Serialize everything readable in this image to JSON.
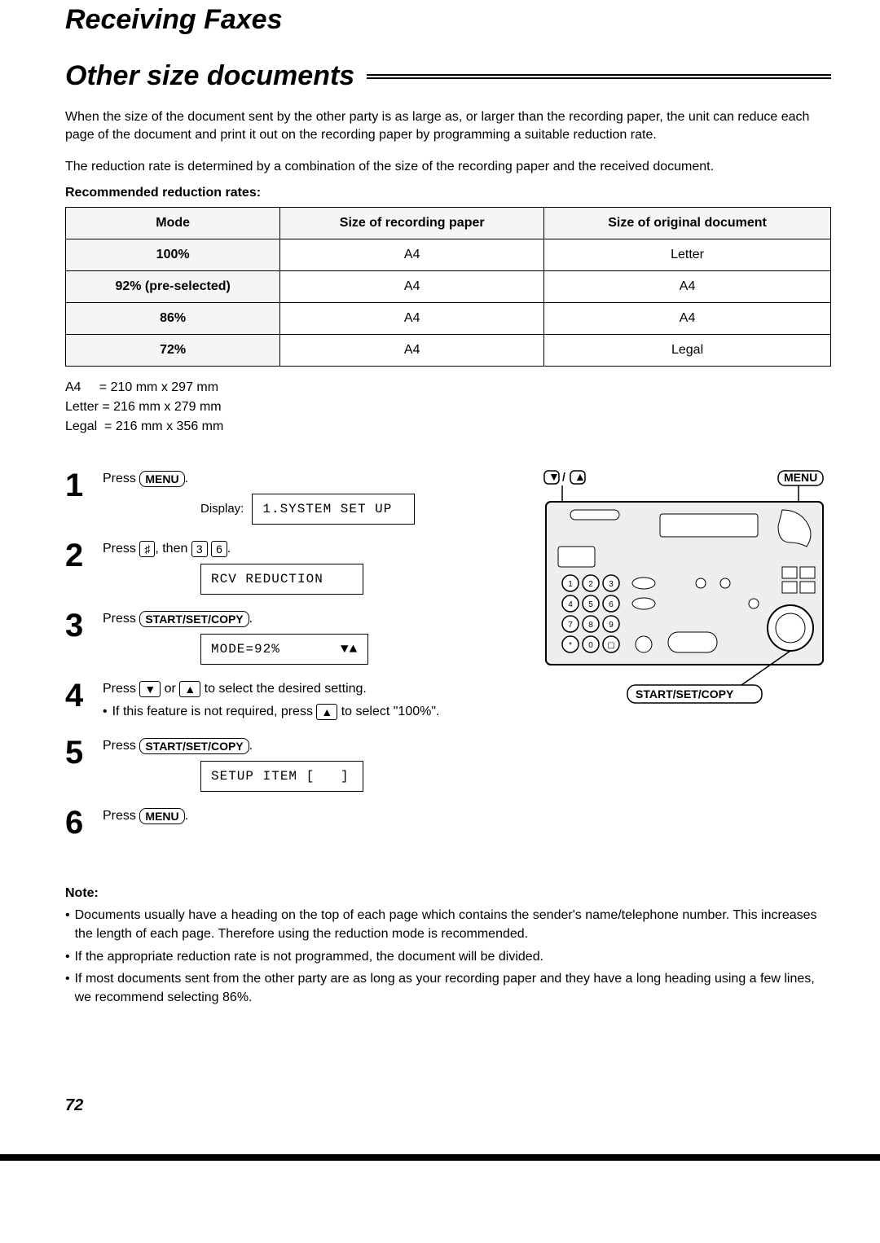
{
  "chapter_title": "Receiving Faxes",
  "section_title": "Other size documents",
  "intro_p1": "When the size of the document sent by the other party is as large as, or larger than the recording paper, the unit can reduce each page of the document and print it out on the recording paper by programming a suitable reduction rate.",
  "intro_p2": "The reduction rate is determined by a combination of the size of the recording paper and the received document.",
  "subhead": "Recommended reduction rates:",
  "table": {
    "headers": [
      "Mode",
      "Size of recording paper",
      "Size of original document"
    ],
    "rows": [
      [
        "100%",
        "A4",
        "Letter"
      ],
      [
        "92% (pre-selected)",
        "A4",
        "A4"
      ],
      [
        "86%",
        "A4",
        "A4"
      ],
      [
        "72%",
        "A4",
        "Legal"
      ]
    ]
  },
  "paper_sizes": "A4     = 210 mm x 297 mm\nLetter = 216 mm x 279 mm\nLegal  = 216 mm x 356 mm",
  "steps": [
    {
      "num": "1",
      "text_pre": "Press ",
      "key": "MENU",
      "text_post": ".",
      "display_label": "Display:",
      "lcd": "1.SYSTEM SET UP"
    },
    {
      "num": "2",
      "text_pre": "Press ",
      "key1": "♯",
      "mid": ", then ",
      "key2": "3",
      "key3": "6",
      "text_post": ".",
      "lcd": "RCV REDUCTION"
    },
    {
      "num": "3",
      "text_pre": "Press ",
      "key": "START/SET/COPY",
      "text_post": ".",
      "lcd": "MODE=92%       ▼▲"
    },
    {
      "num": "4",
      "text_pre": "Press ",
      "key1": "▼",
      "mid": " or ",
      "key2": "▲",
      "text_post": " to select the desired setting.",
      "bullet_pre": "If this feature is not required, press ",
      "bullet_key": "▲",
      "bullet_post": " to select \"100%\"."
    },
    {
      "num": "5",
      "text_pre": "Press ",
      "key": "START/SET/COPY",
      "text_post": ".",
      "lcd": "SETUP ITEM [   ]"
    },
    {
      "num": "6",
      "text_pre": "Press ",
      "key": "MENU",
      "text_post": "."
    }
  ],
  "figure": {
    "label_arrows": "▼ / ▲",
    "label_menu": "MENU",
    "label_start": "START/SET/COPY"
  },
  "note_head": "Note:",
  "notes": [
    "Documents usually have a heading on the top of each page which contains the sender's name/telephone number. This increases the length of each page. Therefore using the reduction mode is recommended.",
    "If the appropriate reduction rate is not programmed, the document will be divided.",
    "If most documents sent from the other party are as long as your recording paper and they have a long heading using a few lines, we recommend selecting 86%."
  ],
  "page_number": "72"
}
